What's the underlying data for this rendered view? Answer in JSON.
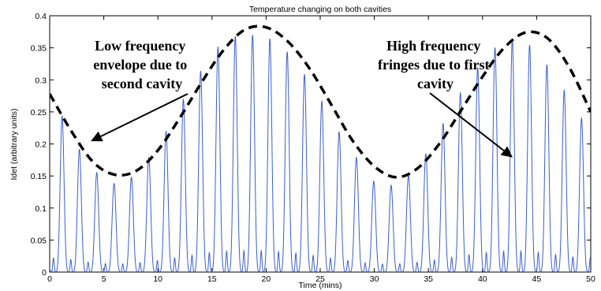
{
  "chart_data": {
    "type": "line",
    "title": "Temperature changing on both cavities",
    "xlabel": "Time (mins)",
    "ylabel": "Idet (arbitrary units)",
    "xlim": [
      0,
      50
    ],
    "ylim": [
      0,
      0.4
    ],
    "x_ticks": [
      0,
      5,
      10,
      15,
      20,
      25,
      30,
      35,
      40,
      45,
      50
    ],
    "y_ticks": [
      0,
      0.05,
      0.1,
      0.15,
      0.2,
      0.25,
      0.3,
      0.35,
      0.4
    ],
    "x_tick_labels": [
      "0",
      "5",
      "10",
      "15",
      "20",
      "25",
      "30",
      "35",
      "40",
      "45",
      "50"
    ],
    "y_tick_labels": [
      "0",
      "0.05",
      "0.1",
      "0.15",
      "0.2",
      "0.25",
      "0.3",
      "0.35",
      "0.4"
    ],
    "grid": false,
    "series": [
      {
        "type": "line",
        "color": "#3a5fcd",
        "fringe_period_mins": 1.6,
        "fringe_phase_mins": 1.15,
        "secondary_peak_fraction": 0.09,
        "envelope_peaks": {
          "x": [
            1.1,
            2.6,
            4.2,
            5.9,
            7.4,
            9.0,
            10.6,
            12.2,
            13.8,
            15.4,
            17.1,
            18.7,
            20.3,
            21.9,
            23.5,
            25.1,
            26.7,
            28.3,
            29.9,
            31.5,
            33.1,
            34.7,
            36.3,
            37.9,
            39.5,
            41.1,
            42.7,
            44.3,
            45.9,
            47.5,
            49.1
          ],
          "y": [
            0.245,
            0.195,
            0.157,
            0.138,
            0.145,
            0.175,
            0.215,
            0.265,
            0.31,
            0.35,
            0.368,
            0.37,
            0.365,
            0.345,
            0.31,
            0.268,
            0.22,
            0.18,
            0.142,
            0.135,
            0.15,
            0.183,
            0.23,
            0.278,
            0.318,
            0.35,
            0.362,
            0.355,
            0.325,
            0.285,
            0.24
          ]
        }
      },
      {
        "type": "line",
        "style": "dashed",
        "color": "#000000",
        "x": [
          0,
          2,
          4,
          6,
          8,
          10,
          12,
          14,
          16,
          18,
          20,
          22,
          24,
          26,
          28,
          30,
          32,
          34,
          36,
          38,
          40,
          42,
          44,
          46,
          48,
          50
        ],
        "y": [
          0.278,
          0.22,
          0.172,
          0.152,
          0.158,
          0.19,
          0.24,
          0.295,
          0.345,
          0.378,
          0.382,
          0.36,
          0.318,
          0.262,
          0.205,
          0.165,
          0.148,
          0.162,
          0.2,
          0.252,
          0.305,
          0.35,
          0.374,
          0.365,
          0.32,
          0.25
        ]
      }
    ],
    "annotations": [
      {
        "lines": [
          "Low frequency",
          "envelope due to",
          "second cavity"
        ],
        "arrow_to": [
          3.9,
          0.205
        ]
      },
      {
        "lines": [
          "High frequency",
          "fringes due to first",
          "cavity"
        ],
        "arrow_to": [
          42.7,
          0.18
        ]
      }
    ]
  }
}
